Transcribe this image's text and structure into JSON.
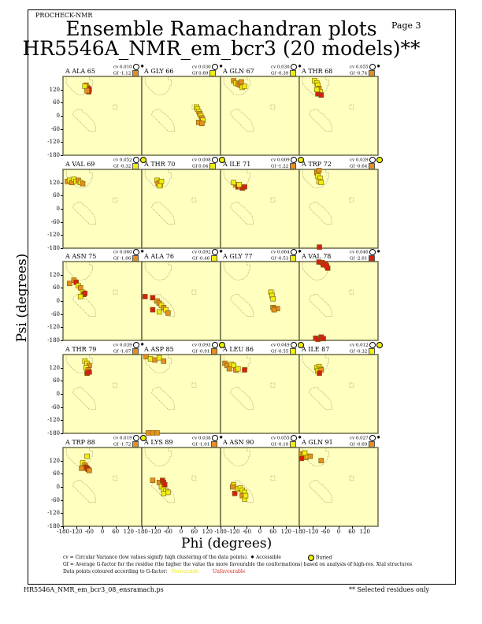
{
  "header": {
    "program": "PROCHECK-NMR",
    "page": "Page  3",
    "title": "Ensemble Ramachandran plots",
    "subtitle": "HR5546A_NMR_em_bcr3 (20 models)**"
  },
  "footer": {
    "filename": "HR5546A_NMR_em_bcr3_08_ensramach.ps",
    "note": "** Selected residues only"
  },
  "legend": {
    "cv_text": "cv = Circular Variance (low values signify high clustering of the data points).",
    "accessible": "Accessible",
    "buried": "Buried",
    "gf_text": "Gf = Average G-factor for the residue (the higher the value the more favourable the conformations) based on analysis of high-res. Xtal structures",
    "colour_text": "Data points coloured according to G-factor:",
    "favourable": "Favourable",
    "unfavourable": "Unfavourable"
  },
  "colors": {
    "panel_bg": "#ffffc0",
    "y": "#eeee10",
    "o": "#e49020",
    "r": "#d42010",
    "grid": "#6b6b4a"
  },
  "chart_data": {
    "type": "scatter",
    "xlabel": "Phi (degrees)",
    "ylabel": "Psi (degrees)",
    "xlim": [
      -180,
      180
    ],
    "ylim": [
      -180,
      180
    ],
    "xticks": [
      "-180",
      "-120",
      "-60",
      "0",
      "60",
      "120",
      "180"
    ],
    "yticks": [
      "120",
      "60",
      "0",
      "-60",
      "-120",
      "-180"
    ],
    "regions": [
      [
        [
          -165,
          180
        ],
        [
          -60,
          180
        ],
        [
          -60,
          165
        ],
        [
          -45,
          165
        ],
        [
          -45,
          140
        ],
        [
          -50,
          140
        ],
        [
          -55,
          120
        ],
        [
          -65,
          110
        ],
        [
          -75,
          100
        ],
        [
          -100,
          95
        ],
        [
          -120,
          100
        ],
        [
          -140,
          120
        ],
        [
          -160,
          140
        ],
        [
          -165,
          150
        ]
      ],
      [
        [
          -110,
          30
        ],
        [
          -95,
          30
        ],
        [
          -90,
          20
        ],
        [
          -75,
          10
        ],
        [
          -60,
          -5
        ],
        [
          -45,
          -20
        ],
        [
          -35,
          -35
        ],
        [
          -30,
          -60
        ],
        [
          -30,
          -70
        ],
        [
          -60,
          -70
        ],
        [
          -75,
          -55
        ],
        [
          -95,
          -35
        ],
        [
          -120,
          -10
        ],
        [
          -135,
          5
        ],
        [
          -130,
          20
        ]
      ],
      [
        [
          50,
          50
        ],
        [
          68,
          50
        ],
        [
          68,
          30
        ],
        [
          50,
          30
        ]
      ]
    ],
    "panels": [
      {
        "label": "A ALA 65",
        "cv": "cv 0.010",
        "gf": "Gf -1.12",
        "gfc": "o",
        "env": "accessible",
        "points": [
          [
            -75,
            140,
            "o"
          ],
          [
            -70,
            130,
            "o"
          ],
          [
            -65,
            125,
            "r"
          ],
          [
            -60,
            120,
            "r"
          ],
          [
            -80,
            135,
            "y"
          ],
          [
            -62,
            110,
            "r"
          ],
          [
            -70,
            115,
            "o"
          ]
        ]
      },
      {
        "label": "A GLY 66",
        "cv": "cv 0.030",
        "gf": "Gf 0.69",
        "gfc": "y",
        "env": "accessible",
        "points": [
          [
            70,
            40,
            "y"
          ],
          [
            75,
            30,
            "y"
          ],
          [
            80,
            20,
            "y"
          ],
          [
            85,
            10,
            "o"
          ],
          [
            90,
            0,
            "y"
          ],
          [
            95,
            -10,
            "o"
          ],
          [
            100,
            -20,
            "y"
          ],
          [
            80,
            -30,
            "o"
          ],
          [
            95,
            -35,
            "o"
          ]
        ]
      },
      {
        "label": "A GLN 67",
        "cv": "cv 0.030",
        "gf": "Gf -0.39",
        "gfc": "y",
        "env": "accessible",
        "points": [
          [
            -120,
            160,
            "o"
          ],
          [
            -110,
            150,
            "y"
          ],
          [
            -100,
            145,
            "o"
          ],
          [
            -90,
            140,
            "o"
          ],
          [
            -80,
            130,
            "y"
          ],
          [
            -70,
            135,
            "y"
          ],
          [
            -85,
            155,
            "o"
          ]
        ]
      },
      {
        "label": "A THR 68",
        "cv": "cv 0.055",
        "gf": "Gf -0.74",
        "gfc": "o",
        "env": "accessible",
        "points": [
          [
            -110,
            160,
            "y"
          ],
          [
            -100,
            150,
            "y"
          ],
          [
            -95,
            140,
            "y"
          ],
          [
            -90,
            125,
            "o"
          ],
          [
            -85,
            110,
            "y"
          ],
          [
            -95,
            100,
            "r"
          ],
          [
            -80,
            95,
            "r"
          ],
          [
            -100,
            120,
            "y"
          ]
        ]
      },
      {
        "label": "A VAL 69",
        "cv": "cv 0.052",
        "gf": "Gf -0.32",
        "gfc": "y",
        "env": "buried",
        "points": [
          [
            -160,
            125,
            "o"
          ],
          [
            -150,
            130,
            "y"
          ],
          [
            -140,
            120,
            "o"
          ],
          [
            -130,
            135,
            "y"
          ],
          [
            -120,
            125,
            "y"
          ],
          [
            -110,
            130,
            "o"
          ],
          [
            -100,
            120,
            "y"
          ],
          [
            -90,
            115,
            "o"
          ]
        ]
      },
      {
        "label": "A THR 70",
        "cv": "cv 0.008",
        "gf": "Gf 0.04",
        "gfc": "y",
        "env": "buried",
        "points": [
          [
            -110,
            130,
            "y"
          ],
          [
            -100,
            120,
            "y"
          ],
          [
            -95,
            110,
            "y"
          ],
          [
            -105,
            115,
            "o"
          ],
          [
            -90,
            125,
            "y"
          ],
          [
            -98,
            105,
            "y"
          ]
        ]
      },
      {
        "label": "A ILE 71",
        "cv": "cv 0.009",
        "gf": "Gf -1.22",
        "gfc": "o",
        "env": "buried",
        "points": [
          [
            -110,
            110,
            "o"
          ],
          [
            -100,
            100,
            "r"
          ],
          [
            -90,
            100,
            "o"
          ],
          [
            -80,
            95,
            "r"
          ],
          [
            -70,
            100,
            "r"
          ],
          [
            -95,
            110,
            "y"
          ],
          [
            -120,
            120,
            "y"
          ]
        ]
      },
      {
        "label": "A TRP 72",
        "cv": "cv 0.039",
        "gf": "Gf -0.64",
        "gfc": "o",
        "env": "buried",
        "points": [
          [
            -100,
            165,
            "o"
          ],
          [
            -90,
            175,
            "o"
          ],
          [
            -95,
            150,
            "y"
          ],
          [
            -85,
            140,
            "y"
          ],
          [
            -90,
            125,
            "y"
          ],
          [
            -80,
            120,
            "y"
          ],
          [
            -88,
            -175,
            "r"
          ]
        ]
      },
      {
        "label": "A ASN 75",
        "cv": "cv 0.060",
        "gf": "Gf -1.06",
        "gfc": "o",
        "env": "accessible",
        "points": [
          [
            -150,
            80,
            "o"
          ],
          [
            -130,
            95,
            "o"
          ],
          [
            -120,
            85,
            "r"
          ],
          [
            -110,
            70,
            "y"
          ],
          [
            -100,
            60,
            "o"
          ],
          [
            -90,
            40,
            "y"
          ],
          [
            -85,
            30,
            "r"
          ],
          [
            -80,
            35,
            "r"
          ],
          [
            -100,
            20,
            "y"
          ]
        ]
      },
      {
        "label": "A ALA 76",
        "cv": "cv 0.092",
        "gf": "Gf -0.46",
        "gfc": "y",
        "env": "accessible",
        "points": [
          [
            -165,
            20,
            "r"
          ],
          [
            -130,
            15,
            "r"
          ],
          [
            -110,
            0,
            "o"
          ],
          [
            -100,
            -10,
            "o"
          ],
          [
            -90,
            -20,
            "y"
          ],
          [
            -80,
            -30,
            "o"
          ],
          [
            -70,
            -40,
            "y"
          ],
          [
            -60,
            -55,
            "o"
          ],
          [
            -130,
            -40,
            "r"
          ],
          [
            -100,
            -50,
            "y"
          ]
        ]
      },
      {
        "label": "A GLY 77",
        "cv": "cv 0.064",
        "gf": "Gf -0.53",
        "gfc": "y",
        "env": "accessible",
        "points": [
          [
            50,
            40,
            "y"
          ],
          [
            55,
            25,
            "y"
          ],
          [
            60,
            10,
            "y"
          ],
          [
            60,
            -30,
            "o"
          ],
          [
            70,
            -35,
            "o"
          ],
          [
            80,
            -35,
            "o"
          ],
          [
            65,
            -40,
            "o"
          ]
        ]
      },
      {
        "label": "A VAL 78",
        "cv": "cv 0.046",
        "gf": "Gf -2.61",
        "gfc": "r",
        "env": "accessible",
        "points": [
          [
            -90,
            178,
            "r"
          ],
          [
            -75,
            175,
            "r"
          ],
          [
            -60,
            170,
            "r"
          ],
          [
            -55,
            160,
            "r"
          ],
          [
            -50,
            150,
            "r"
          ],
          [
            -70,
            165,
            "r"
          ],
          [
            -105,
            -170,
            "r"
          ],
          [
            -95,
            -175,
            "r"
          ],
          [
            -80,
            -165,
            "r"
          ],
          [
            -70,
            -172,
            "r"
          ]
        ]
      },
      {
        "label": "A THR 79",
        "cv": "cv 0.039",
        "gf": "Gf -1.07",
        "gfc": "o",
        "env": "accessible",
        "points": [
          [
            -80,
            150,
            "y"
          ],
          [
            -70,
            140,
            "y"
          ],
          [
            -60,
            130,
            "o"
          ],
          [
            -75,
            120,
            "y"
          ],
          [
            -65,
            110,
            "o"
          ],
          [
            -70,
            95,
            "r"
          ],
          [
            -60,
            100,
            "r"
          ]
        ]
      },
      {
        "label": "A ASP 85",
        "cv": "cv 0.093",
        "gf": "Gf -0.91",
        "gfc": "o",
        "env": "buried",
        "points": [
          [
            -160,
            170,
            "o"
          ],
          [
            -140,
            160,
            "y"
          ],
          [
            -120,
            155,
            "o"
          ],
          [
            -100,
            165,
            "y"
          ],
          [
            -80,
            150,
            "o"
          ],
          [
            -150,
            -178,
            "o"
          ],
          [
            -130,
            -178,
            "o"
          ],
          [
            -110,
            -178,
            "o"
          ]
        ]
      },
      {
        "label": "A LEU 86",
        "cv": "cv 0.049",
        "gf": "Gf -0.55",
        "gfc": "y",
        "env": "buried",
        "points": [
          [
            -160,
            140,
            "o"
          ],
          [
            -150,
            130,
            "o"
          ],
          [
            -130,
            135,
            "y"
          ],
          [
            -120,
            130,
            "y"
          ],
          [
            -140,
            115,
            "o"
          ],
          [
            -110,
            110,
            "o"
          ],
          [
            -100,
            115,
            "y"
          ],
          [
            -70,
            110,
            "r"
          ]
        ]
      },
      {
        "label": "A ILE 87",
        "cv": "cv 0.012",
        "gf": "Gf -0.32",
        "gfc": "y",
        "env": "buried",
        "points": [
          [
            -100,
            120,
            "y"
          ],
          [
            -90,
            125,
            "y"
          ],
          [
            -85,
            115,
            "y"
          ],
          [
            -95,
            105,
            "y"
          ],
          [
            -80,
            110,
            "o"
          ],
          [
            -88,
            95,
            "r"
          ]
        ]
      },
      {
        "label": "A TRP 88",
        "cv": "cv 0.019",
        "gf": "Gf -1.72",
        "gfc": "o",
        "env": "buried",
        "points": [
          [
            -70,
            140,
            "y"
          ],
          [
            -90,
            110,
            "y"
          ],
          [
            -80,
            100,
            "o"
          ],
          [
            -75,
            90,
            "r"
          ],
          [
            -70,
            85,
            "r"
          ],
          [
            -65,
            80,
            "r"
          ],
          [
            -60,
            75,
            "o"
          ],
          [
            -95,
            85,
            "o"
          ]
        ]
      },
      {
        "label": "A LYS 89",
        "cv": "cv 0.038",
        "gf": "Gf -1.01",
        "gfc": "o",
        "env": "accessible",
        "points": [
          [
            -130,
            30,
            "o"
          ],
          [
            -100,
            20,
            "o"
          ],
          [
            -85,
            30,
            "r"
          ],
          [
            -80,
            20,
            "r"
          ],
          [
            -90,
            0,
            "y"
          ],
          [
            -80,
            -10,
            "y"
          ],
          [
            -70,
            -20,
            "y"
          ],
          [
            -60,
            -25,
            "y"
          ],
          [
            -80,
            -30,
            "y"
          ],
          [
            -75,
            10,
            "r"
          ]
        ]
      },
      {
        "label": "A ASN 90",
        "cv": "cv 0.055",
        "gf": "Gf -0.10",
        "gfc": "y",
        "env": "accessible",
        "points": [
          [
            -120,
            10,
            "y"
          ],
          [
            -125,
            0,
            "o"
          ],
          [
            -115,
            -30,
            "r"
          ],
          [
            -100,
            -10,
            "y"
          ],
          [
            -90,
            -5,
            "y"
          ],
          [
            -80,
            -15,
            "y"
          ],
          [
            -70,
            -25,
            "y"
          ],
          [
            -80,
            -40,
            "o"
          ],
          [
            -70,
            -55,
            "y"
          ],
          [
            -65,
            -40,
            "y"
          ]
        ]
      },
      {
        "label": "A GLN 91",
        "cv": "cv 0.027",
        "gf": "Gf -0.69",
        "gfc": "o",
        "env": "accessible",
        "points": [
          [
            -170,
            150,
            "o"
          ],
          [
            -160,
            145,
            "y"
          ],
          [
            -150,
            135,
            "o"
          ],
          [
            -170,
            130,
            "r"
          ],
          [
            -140,
            140,
            "y"
          ],
          [
            -130,
            140,
            "o"
          ],
          [
            -80,
            120,
            "o"
          ],
          [
            -155,
            155,
            "y"
          ]
        ]
      }
    ]
  }
}
